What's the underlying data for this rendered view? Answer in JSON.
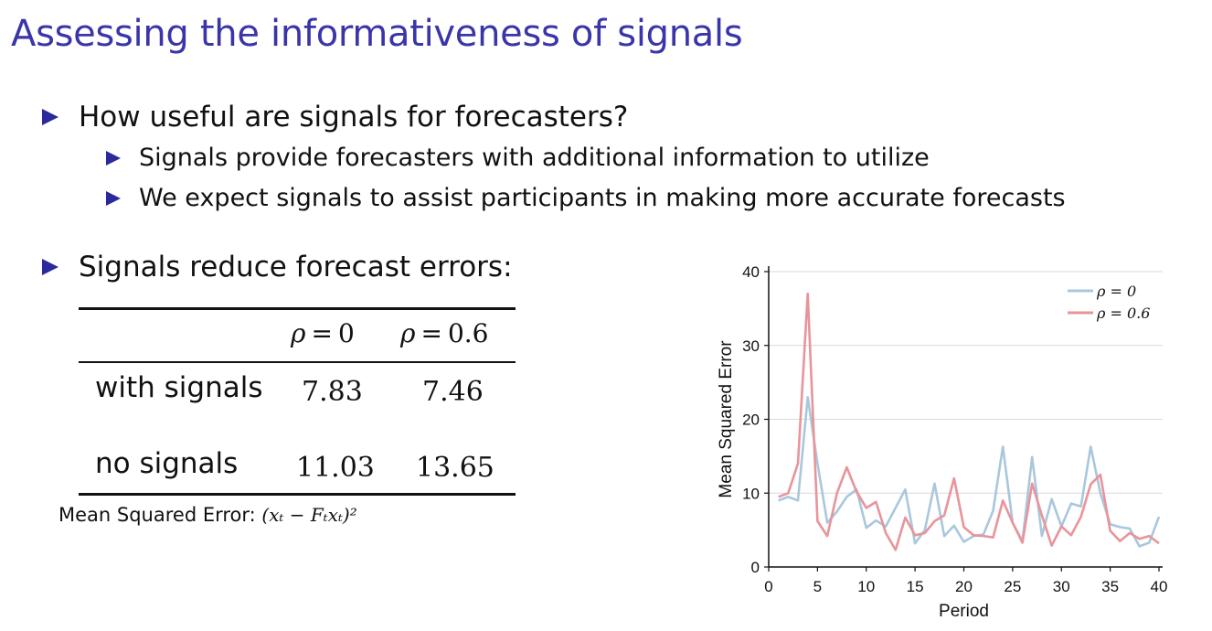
{
  "slide": {
    "title": "Assessing the informativeness of signals",
    "bullets": {
      "b1": "How useful are signals for forecasters?",
      "b1a": "Signals provide forecasters with additional information to utilize",
      "b1b": "We expect signals to assist participants in making more accurate forecasts",
      "b2": "Signals reduce forecast errors:"
    }
  },
  "table": {
    "col1_sym": "ρ",
    "col1_op": "=",
    "col1_val": "0",
    "col2_sym": "ρ",
    "col2_op": "=",
    "col2_val": "0.6",
    "rows": [
      {
        "label": "with signals",
        "v1": "7.83",
        "v2": "7.46"
      },
      {
        "label": "no signals",
        "v1": "11.03",
        "v2": "13.65"
      }
    ],
    "caption_text": "Mean Squared Error:",
    "caption_math": "(xₜ − Fₜxₜ)²"
  },
  "chart_data": {
    "type": "line",
    "xlabel": "Period",
    "ylabel": "Mean Squared Error",
    "xlim": [
      0,
      40
    ],
    "ylim": [
      0,
      40
    ],
    "xticks": [
      "0",
      "5",
      "10",
      "15",
      "20",
      "25",
      "30",
      "35",
      "40"
    ],
    "yticks": [
      "0",
      "10",
      "20",
      "30",
      "40"
    ],
    "grid": "horizontal",
    "legend_position": "top-right",
    "x": [
      1,
      2,
      3,
      4,
      5,
      6,
      7,
      8,
      9,
      10,
      11,
      12,
      13,
      14,
      15,
      16,
      17,
      18,
      19,
      20,
      21,
      22,
      23,
      24,
      25,
      26,
      27,
      28,
      29,
      30,
      31,
      32,
      33,
      34,
      35,
      36,
      37,
      38,
      39,
      40
    ],
    "series": [
      {
        "name": "ρ = 0",
        "color": "#a9c7dd",
        "values": [
          9,
          9.5,
          9,
          23,
          14,
          6,
          7.5,
          9.5,
          10.5,
          5.3,
          6.3,
          5.5,
          8,
          10.5,
          3.2,
          5,
          11.3,
          4.2,
          5.6,
          3.4,
          4.2,
          4.4,
          7.6,
          16.3,
          6,
          3.5,
          14.9,
          4.2,
          9.2,
          5.5,
          8.6,
          8.2,
          16.3,
          10,
          5.8,
          5.4,
          5.2,
          2.8,
          3.3,
          6.8
        ]
      },
      {
        "name": "ρ = 0.6",
        "color": "#e8949a",
        "values": [
          9.5,
          10,
          14,
          37,
          6.2,
          4.2,
          10,
          13.5,
          10.2,
          8,
          8.8,
          4.6,
          2.3,
          6.7,
          4.3,
          4.6,
          6.2,
          7,
          12,
          5.4,
          4.3,
          4.2,
          4,
          9,
          6,
          3.3,
          11.3,
          7,
          2.9,
          5.5,
          4.3,
          6.8,
          11.2,
          12.5,
          4.9,
          3.5,
          4.6,
          3.8,
          4.2,
          3.2
        ]
      }
    ]
  }
}
